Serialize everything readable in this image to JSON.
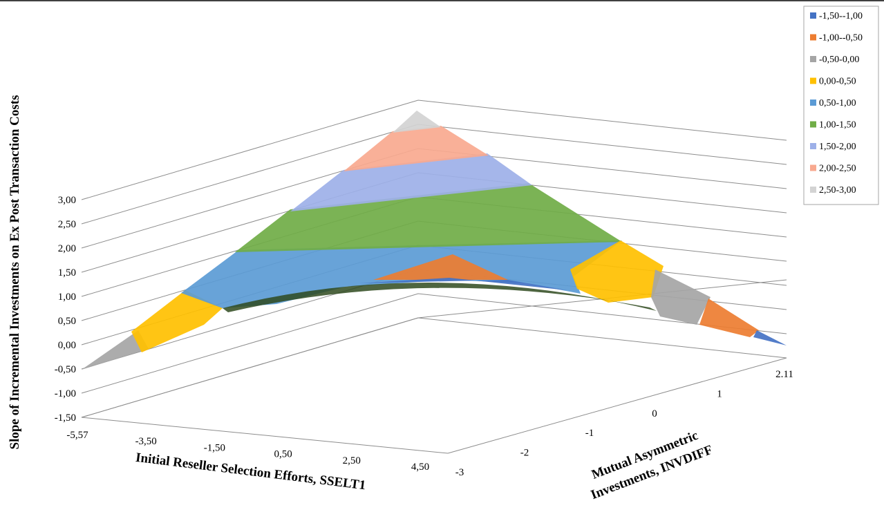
{
  "chart_data": {
    "type": "surface",
    "ylabel": "Slope of Incremental Investments on Ex Post Transaction Costs",
    "xlabel": "Initial Reseller Selection Efforts, SSELT1",
    "zlabel_line1": "Mutual Asymmetric",
    "zlabel_line2": "Investments, INVDIFF",
    "y_ticks": [
      "-1,50",
      "-1,00",
      "-0,50",
      "0,00",
      "0,50",
      "1,00",
      "1,50",
      "2,00",
      "2,50",
      "3,00"
    ],
    "ylim": [
      -1.5,
      3.0
    ],
    "x_ticks": [
      "-5,57",
      "-3,50",
      "-1,50",
      "0,50",
      "2,50",
      "4,50"
    ],
    "z_ticks": [
      "-3",
      "-2",
      "-1",
      "0",
      "1",
      "2.11"
    ],
    "peak_value": 2.9,
    "corner_values": {
      "front_left": -0.55,
      "front_right_end": -1.5,
      "back_right": -1.5
    },
    "legend_position": "top-right",
    "legend": [
      {
        "label": "-1,50--1,00",
        "color": "#4472C4"
      },
      {
        "label": "-1,00--0,50",
        "color": "#ED7D31"
      },
      {
        "label": "-0,50-0,00",
        "color": "#A5A5A5"
      },
      {
        "label": "0,00-0,50",
        "color": "#FFC000"
      },
      {
        "label": "0,50-1,00",
        "color": "#5B9BD5"
      },
      {
        "label": "1,00-1,50",
        "color": "#70AD47"
      },
      {
        "label": "1,50-2,00",
        "color": "#9DB0E8"
      },
      {
        "label": "2,00-2,50",
        "color": "#F8A98F"
      },
      {
        "label": "2,50-3,00",
        "color": "#D3D3D3"
      }
    ]
  }
}
